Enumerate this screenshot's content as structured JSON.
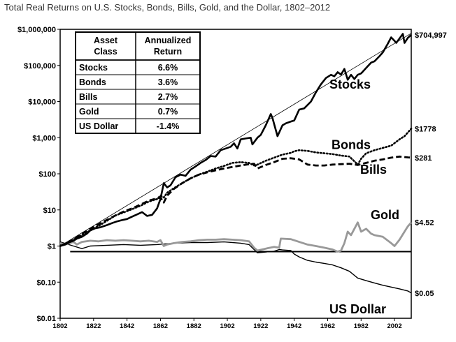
{
  "chart_data": {
    "type": "line",
    "title": "Total Real Returns on U.S. Stocks, Bonds, Bills, Gold, and the Dollar, 1802–2012",
    "xlabel": "",
    "ylabel": "",
    "y_scale": "log",
    "xlim": [
      1802,
      2012
    ],
    "ylim": [
      0.01,
      1000000
    ],
    "x_ticks": [
      1802,
      1822,
      1842,
      1862,
      1882,
      1902,
      1922,
      1942,
      1962,
      1982,
      2002
    ],
    "y_ticks": [
      {
        "value": 1000000,
        "label": "$1,000,000"
      },
      {
        "value": 100000,
        "label": "$100,000"
      },
      {
        "value": 10000,
        "label": "$10,000"
      },
      {
        "value": 1000,
        "label": "$1,000"
      },
      {
        "value": 100,
        "label": "$100"
      },
      {
        "value": 10,
        "label": "$10"
      },
      {
        "value": 1,
        "label": "$1"
      },
      {
        "value": 0.1,
        "label": "$0.10"
      },
      {
        "value": 0.01,
        "label": "$0.01"
      }
    ],
    "grid": false,
    "series": [
      {
        "name": "Stocks",
        "end_label": "$704,997",
        "color": "#000000",
        "style": "solid-thick",
        "x": [
          1802,
          1805,
          1808,
          1810,
          1812,
          1815,
          1818,
          1820,
          1823,
          1826,
          1830,
          1833,
          1836,
          1839,
          1842,
          1845,
          1848,
          1851,
          1854,
          1857,
          1860,
          1862,
          1864,
          1866,
          1868,
          1871,
          1874,
          1877,
          1880,
          1883,
          1886,
          1889,
          1892,
          1895,
          1898,
          1901,
          1904,
          1906,
          1908,
          1910,
          1913,
          1916,
          1917,
          1920,
          1922,
          1925,
          1928,
          1929,
          1932,
          1935,
          1937,
          1940,
          1942,
          1945,
          1948,
          1952,
          1955,
          1958,
          1961,
          1964,
          1966,
          1968,
          1970,
          1972,
          1974,
          1976,
          1978,
          1980,
          1982,
          1985,
          1988,
          1990,
          1993,
          1995,
          1998,
          2000,
          2002,
          2003,
          2005,
          2007,
          2008,
          2010,
          2012
        ],
        "y": [
          1,
          1.1,
          1.3,
          1.4,
          1.6,
          1.8,
          2.2,
          2.7,
          3.1,
          3.3,
          3.8,
          4.3,
          4.8,
          5.2,
          5.6,
          6.5,
          7.5,
          8.7,
          6.8,
          7.3,
          11,
          20,
          55,
          42,
          48,
          80,
          95,
          88,
          130,
          160,
          200,
          240,
          310,
          300,
          450,
          500,
          560,
          700,
          500,
          900,
          950,
          1000,
          650,
          1000,
          1200,
          2200,
          4500,
          3500,
          1100,
          2200,
          2500,
          2800,
          3000,
          6000,
          6500,
          10000,
          18000,
          30000,
          45000,
          55000,
          50000,
          65000,
          56000,
          80000,
          40000,
          55000,
          42000,
          55000,
          60000,
          85000,
          120000,
          130000,
          180000,
          230000,
          400000,
          600000,
          480000,
          420000,
          560000,
          750000,
          420000,
          580000,
          705000
        ]
      },
      {
        "name": "Bonds",
        "end_label": "$1778",
        "color": "#000000",
        "style": "dotted",
        "x": [
          1802,
          1810,
          1815,
          1820,
          1825,
          1830,
          1835,
          1840,
          1845,
          1850,
          1855,
          1860,
          1862,
          1864,
          1866,
          1870,
          1875,
          1880,
          1885,
          1890,
          1895,
          1900,
          1905,
          1910,
          1915,
          1918,
          1920,
          1925,
          1930,
          1935,
          1940,
          1942,
          1945,
          1950,
          1955,
          1960,
          1965,
          1970,
          1975,
          1980,
          1982,
          1985,
          1990,
          1995,
          2000,
          2005,
          2008,
          2010,
          2012
        ],
        "y": [
          1,
          1.5,
          2,
          2.7,
          3.6,
          5,
          7,
          8.5,
          10.5,
          13,
          17,
          20,
          25,
          22,
          30,
          40,
          55,
          75,
          95,
          115,
          140,
          165,
          200,
          210,
          200,
          170,
          180,
          230,
          280,
          340,
          380,
          420,
          450,
          430,
          390,
          370,
          350,
          320,
          300,
          180,
          260,
          370,
          450,
          520,
          600,
          900,
          1100,
          1400,
          1778
        ]
      },
      {
        "name": "Bills",
        "end_label": "$281",
        "color": "#000000",
        "style": "dashed",
        "x": [
          1802,
          1810,
          1815,
          1820,
          1825,
          1830,
          1835,
          1840,
          1845,
          1850,
          1855,
          1860,
          1862,
          1864,
          1866,
          1870,
          1875,
          1880,
          1885,
          1890,
          1895,
          1900,
          1905,
          1910,
          1915,
          1918,
          1920,
          1925,
          1930,
          1935,
          1940,
          1945,
          1950,
          1955,
          1960,
          1965,
          1970,
          1975,
          1980,
          1985,
          1990,
          1995,
          2000,
          2005,
          2010,
          2012
        ],
        "y": [
          1,
          1.5,
          2.2,
          3,
          4,
          5.3,
          7,
          9,
          11,
          14,
          18,
          21,
          22,
          16,
          25,
          38,
          55,
          75,
          95,
          110,
          125,
          140,
          155,
          170,
          185,
          190,
          140,
          175,
          210,
          260,
          270,
          250,
          180,
          170,
          170,
          180,
          185,
          190,
          175,
          200,
          230,
          250,
          280,
          300,
          285,
          281
        ]
      },
      {
        "name": "Gold",
        "end_label": "$4.52",
        "color": "#999999",
        "style": "solid-grey",
        "x": [
          1802,
          1805,
          1810,
          1812,
          1815,
          1820,
          1825,
          1830,
          1835,
          1840,
          1845,
          1850,
          1855,
          1860,
          1862,
          1864,
          1866,
          1870,
          1875,
          1880,
          1885,
          1890,
          1895,
          1900,
          1905,
          1910,
          1915,
          1918,
          1920,
          1925,
          1930,
          1933,
          1934,
          1940,
          1945,
          1950,
          1955,
          1960,
          1965,
          1968,
          1970,
          1972,
          1974,
          1976,
          1978,
          1980,
          1982,
          1985,
          1988,
          1990,
          1995,
          2000,
          2002,
          2005,
          2008,
          2010,
          2012
        ],
        "y": [
          1.2,
          1.1,
          1.3,
          1.1,
          1.3,
          1.4,
          1.35,
          1.45,
          1.4,
          1.45,
          1.4,
          1.35,
          1.4,
          1.3,
          1.45,
          1.0,
          1.1,
          1.2,
          1.3,
          1.35,
          1.45,
          1.5,
          1.5,
          1.55,
          1.5,
          1.45,
          1.35,
          0.9,
          0.75,
          0.85,
          0.95,
          0.9,
          1.6,
          1.55,
          1.3,
          1.1,
          1.0,
          0.9,
          0.8,
          0.7,
          0.75,
          1.2,
          2.5,
          2.0,
          3.0,
          4.5,
          2.5,
          3.0,
          2.2,
          2.0,
          1.8,
          1.2,
          1.0,
          1.5,
          2.5,
          3.5,
          4.52
        ]
      },
      {
        "name": "US Dollar",
        "end_label": "$0.05",
        "color": "#000000",
        "style": "solid-thin",
        "x": [
          1802,
          1810,
          1815,
          1820,
          1830,
          1840,
          1850,
          1860,
          1870,
          1880,
          1890,
          1900,
          1910,
          1915,
          1920,
          1930,
          1933,
          1935,
          1940,
          1942,
          1945,
          1950,
          1955,
          1960,
          1965,
          1970,
          1975,
          1980,
          1985,
          1990,
          1995,
          2000,
          2005,
          2010,
          2012
        ],
        "y": [
          1.3,
          1.0,
          0.85,
          1.0,
          1.05,
          1.1,
          1.05,
          1.1,
          1.2,
          1.25,
          1.25,
          1.3,
          1.2,
          1.1,
          0.65,
          0.72,
          0.8,
          0.78,
          0.75,
          0.6,
          0.5,
          0.4,
          0.36,
          0.33,
          0.3,
          0.25,
          0.2,
          0.13,
          0.11,
          0.095,
          0.082,
          0.073,
          0.065,
          0.057,
          0.05
        ]
      }
    ],
    "reference_line": {
      "value": 0.7,
      "style": "solid-thick-horizontal",
      "x_from": 1808
    },
    "annotation_table": {
      "headers": [
        "Asset\nClass",
        "Annualized\nReturn"
      ],
      "rows": [
        [
          "Stocks",
          "6.6%"
        ],
        [
          "Bonds",
          "3.6%"
        ],
        [
          "Bills",
          "2.7%"
        ],
        [
          "Gold",
          "0.7%"
        ],
        [
          "US Dollar",
          "-1.4%"
        ]
      ]
    }
  }
}
